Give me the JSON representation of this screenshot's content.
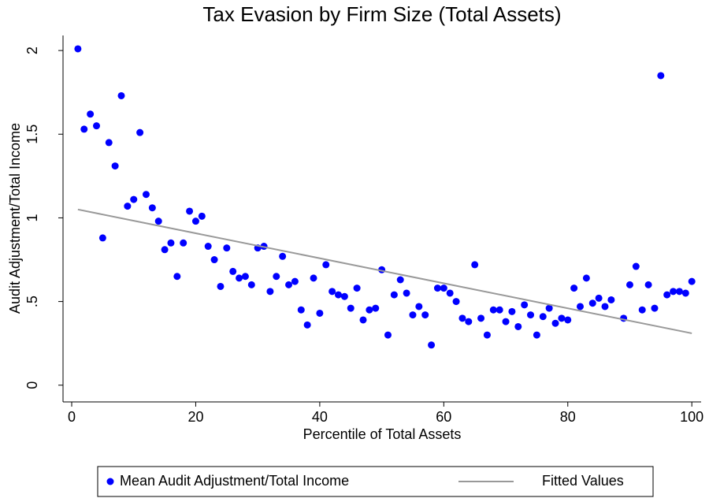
{
  "chart_data": {
    "type": "scatter",
    "title": "Tax Evasion by Firm Size (Total Assets)",
    "xlabel": "Percentile of Total Assets",
    "ylabel": "Audit Adjustment/Total Income",
    "xlim": [
      -1.4,
      101.5
    ],
    "xticks": [
      0,
      20,
      40,
      60,
      80,
      100
    ],
    "ylim": [
      -0.1,
      2.09
    ],
    "yticks": [
      0,
      {
        "value": 0.5,
        "label": ".5"
      },
      1,
      1.5,
      2
    ],
    "legend": "bottom",
    "series": [
      {
        "name": "Mean Audit Adjustment/Total Income",
        "type": "scatter",
        "color": "#0000ff",
        "x": [
          1,
          2,
          3,
          4,
          5,
          6,
          7,
          8,
          9,
          10,
          11,
          12,
          13,
          14,
          15,
          16,
          17,
          18,
          19,
          20,
          21,
          22,
          23,
          24,
          25,
          26,
          27,
          28,
          29,
          30,
          31,
          32,
          33,
          34,
          35,
          36,
          37,
          38,
          39,
          40,
          41,
          42,
          43,
          44,
          45,
          46,
          47,
          48,
          49,
          50,
          51,
          52,
          53,
          54,
          55,
          56,
          57,
          58,
          59,
          60,
          61,
          62,
          63,
          64,
          65,
          66,
          67,
          68,
          69,
          70,
          71,
          72,
          73,
          74,
          75,
          76,
          77,
          78,
          79,
          80,
          81,
          82,
          83,
          84,
          85,
          86,
          87,
          89,
          90,
          91,
          92,
          93,
          94,
          95,
          96,
          97,
          98,
          99,
          100
        ],
        "values": [
          2.01,
          1.53,
          1.62,
          1.55,
          0.88,
          1.45,
          1.31,
          1.73,
          1.07,
          1.11,
          1.51,
          1.14,
          1.06,
          0.98,
          0.81,
          0.85,
          0.65,
          0.85,
          1.04,
          0.98,
          1.01,
          0.83,
          0.75,
          0.59,
          0.82,
          0.68,
          0.64,
          0.65,
          0.6,
          0.82,
          0.83,
          0.56,
          0.65,
          0.77,
          0.6,
          0.62,
          0.45,
          0.36,
          0.64,
          0.43,
          0.72,
          0.56,
          0.54,
          0.53,
          0.46,
          0.58,
          0.39,
          0.45,
          0.46,
          0.69,
          0.3,
          0.54,
          0.63,
          0.55,
          0.42,
          0.47,
          0.42,
          0.24,
          0.58,
          0.58,
          0.55,
          0.5,
          0.4,
          0.38,
          0.72,
          0.4,
          0.3,
          0.45,
          0.45,
          0.38,
          0.44,
          0.35,
          0.48,
          0.42,
          0.3,
          0.41,
          0.46,
          0.37,
          0.4,
          0.39,
          0.58,
          0.47,
          0.64,
          0.49,
          0.52,
          0.47,
          0.51,
          0.4,
          0.6,
          0.71,
          0.45,
          0.6,
          0.46,
          1.85,
          0.54,
          0.56,
          0.56,
          0.55,
          0.62
        ]
      },
      {
        "name": "Fitted Values",
        "type": "line",
        "color": "#999999",
        "x": [
          1,
          100
        ],
        "values": [
          1.05,
          0.31
        ]
      }
    ]
  }
}
